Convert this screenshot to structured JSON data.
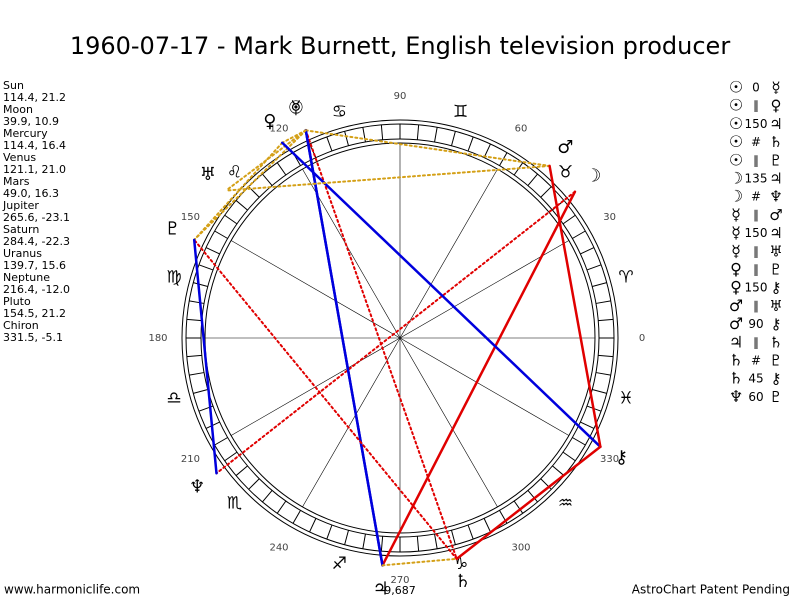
{
  "title": "1960-07-17 - Mark Burnett, English television producer",
  "planets": [
    {
      "name": "Sun",
      "coords": "114.4, 21.2",
      "glyph": "☉"
    },
    {
      "name": "Moon",
      "coords": "39.9, 10.9",
      "glyph": "☽"
    },
    {
      "name": "Mercury",
      "coords": "114.4, 16.4",
      "glyph": "☿"
    },
    {
      "name": "Venus",
      "coords": "121.1, 21.0",
      "glyph": "♀"
    },
    {
      "name": "Mars",
      "coords": "49.0, 16.3",
      "glyph": "♂"
    },
    {
      "name": "Jupiter",
      "coords": "265.6, -23.1",
      "glyph": "♃"
    },
    {
      "name": "Saturn",
      "coords": "284.4, -22.3",
      "glyph": "♄"
    },
    {
      "name": "Uranus",
      "coords": "139.7, 15.6",
      "glyph": "♅"
    },
    {
      "name": "Neptune",
      "coords": "216.4, -12.0",
      "glyph": "♆"
    },
    {
      "name": "Pluto",
      "coords": "154.5, 21.2",
      "glyph": "♇"
    },
    {
      "name": "Chiron",
      "coords": "331.5, -5.1",
      "glyph": "⚷"
    }
  ],
  "aspects": [
    {
      "from": "☉",
      "aspect": "0",
      "to": "☿"
    },
    {
      "from": "☉",
      "aspect": "∥",
      "to": "♀"
    },
    {
      "from": "☉",
      "aspect": "150",
      "to": "♃"
    },
    {
      "from": "☉",
      "aspect": "#",
      "to": "♄"
    },
    {
      "from": "☉",
      "aspect": "∥",
      "to": "♇"
    },
    {
      "from": "☽",
      "aspect": "135",
      "to": "♃"
    },
    {
      "from": "☽",
      "aspect": "#",
      "to": "♆"
    },
    {
      "from": "☿",
      "aspect": "∥",
      "to": "♂"
    },
    {
      "from": "☿",
      "aspect": "150",
      "to": "♃"
    },
    {
      "from": "☿",
      "aspect": "∥",
      "to": "♅"
    },
    {
      "from": "♀",
      "aspect": "∥",
      "to": "♇"
    },
    {
      "from": "♀",
      "aspect": "150",
      "to": "⚷"
    },
    {
      "from": "♂",
      "aspect": "∥",
      "to": "♅"
    },
    {
      "from": "♂",
      "aspect": "90",
      "to": "⚷"
    },
    {
      "from": "♃",
      "aspect": "∥",
      "to": "♄"
    },
    {
      "from": "♄",
      "aspect": "#",
      "to": "♇"
    },
    {
      "from": "♄",
      "aspect": "45",
      "to": "⚷"
    },
    {
      "from": "♆",
      "aspect": "60",
      "to": "♇"
    }
  ],
  "signs": [
    "♈",
    "♉",
    "♊",
    "♋",
    "♌",
    "♍",
    "♎",
    "♏",
    "♐",
    "♑",
    "♒",
    "♓"
  ],
  "degree_labels": [
    "0",
    "30",
    "60",
    "90",
    "120",
    "150",
    "180",
    "210",
    "240",
    "270",
    "300",
    "330"
  ],
  "extra_label": "9,687",
  "footer": {
    "left": "www.harmoniclife.com",
    "right": "AstroChart Patent Pending"
  }
}
